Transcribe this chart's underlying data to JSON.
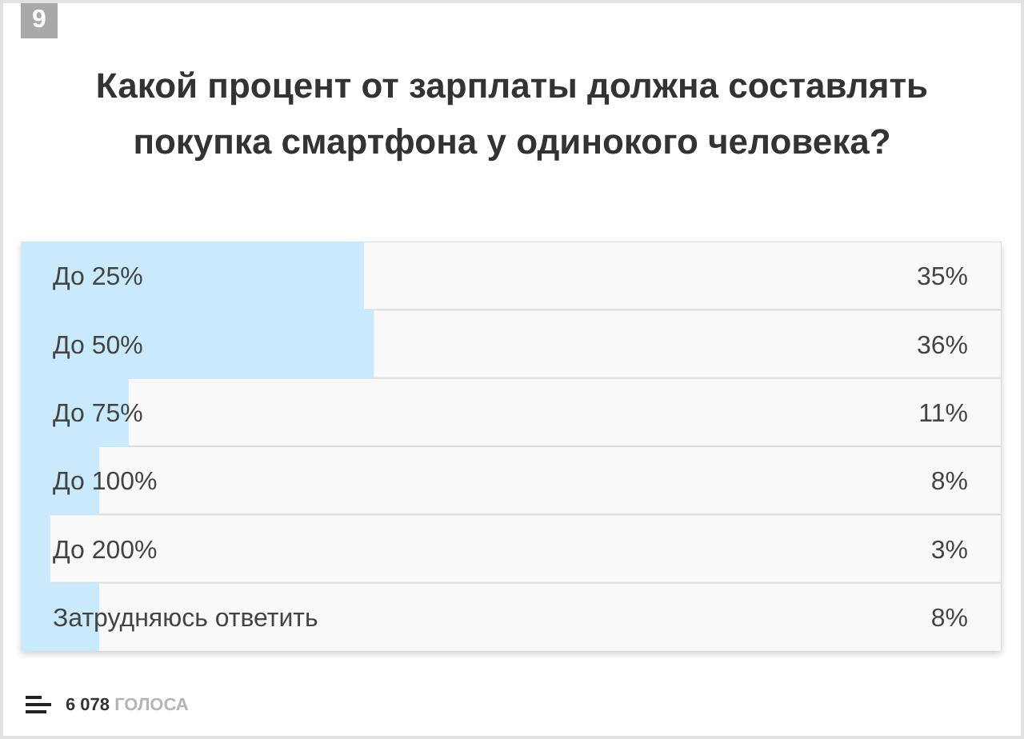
{
  "chart_data": {
    "type": "bar",
    "orientation": "horizontal",
    "title": "Какой процент от зарплаты должна составлять покупка смартфона у одинокого человека?",
    "categories": [
      "До 25%",
      "До 50%",
      "До 75%",
      "До 100%",
      "До 200%",
      "Затрудняюсь ответить"
    ],
    "values": [
      35,
      36,
      11,
      8,
      3,
      8
    ],
    "value_labels": [
      "35%",
      "36%",
      "11%",
      "8%",
      "3%",
      "8%"
    ],
    "color": "#c8eafc",
    "xlim": [
      0,
      100
    ],
    "tick_labels": "y",
    "annotations": [
      "9",
      "6 078 ГОЛОСА"
    ]
  }
}
